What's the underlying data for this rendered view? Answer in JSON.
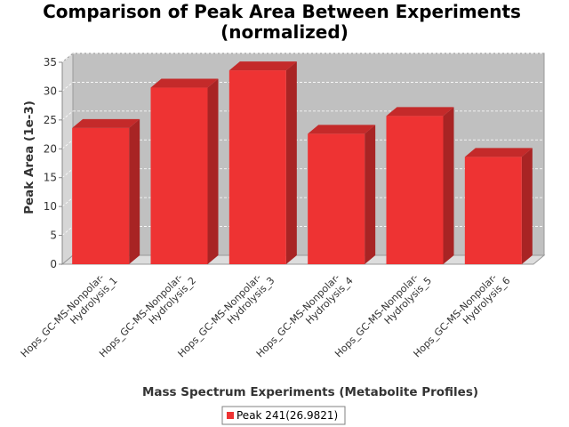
{
  "chart_data": {
    "type": "bar",
    "title": "Comparison of Peak Area Between Experiments",
    "subtitle": "(normalized)",
    "xlabel": "Mass Spectrum Experiments (Metabolite Profiles)",
    "ylabel": "Peak Area (1e-3)",
    "categories": [
      [
        "Hops_GC-MS-Nonpolar-",
        "Hydrolysis_1"
      ],
      [
        "Hops_GC-MS-Nonpolar-",
        "Hydrolysis_2"
      ],
      [
        "Hops_GC-MS-Nonpolar-",
        "Hydrolysis_3"
      ],
      [
        "Hops_GC-MS-Nonpolar-",
        "Hydrolysis_4"
      ],
      [
        "Hops_GC-MS-Nonpolar-",
        "Hydrolysis_5"
      ],
      [
        "Hops_GC-MS-Nonpolar-",
        "Hydrolysis_6"
      ]
    ],
    "series": [
      {
        "name": "Peak 241(26.9821)",
        "values": [
          23.6,
          30.6,
          33.6,
          22.6,
          25.7,
          18.6
        ]
      }
    ],
    "ylim": [
      0,
      35
    ],
    "yticks": [
      0,
      5,
      10,
      15,
      20,
      25,
      30,
      35
    ],
    "grid": true,
    "legend_position": "bottom",
    "colors": {
      "bar_front": "#ee3333",
      "bar_top": "#c42a2a",
      "bar_side": "#a82424",
      "plot_back": "#c0c0c0",
      "plot_floor": "#dddddd"
    }
  }
}
